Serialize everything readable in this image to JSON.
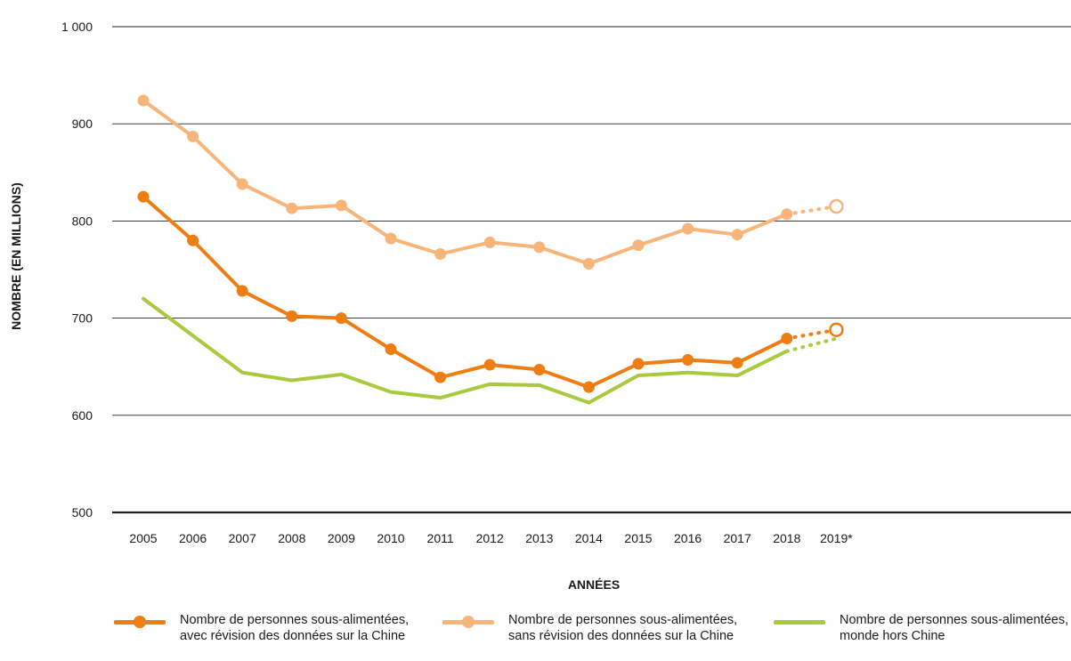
{
  "chart_data": {
    "type": "line",
    "title": "",
    "xlabel": "ANNÉES",
    "ylabel": "NOMBRE (EN MILLIONS)",
    "ylim": [
      500,
      1000
    ],
    "yticks": [
      500,
      600,
      700,
      800,
      900,
      1000
    ],
    "ytick_labels": [
      "500",
      "600",
      "700",
      "800",
      "900",
      "1 000"
    ],
    "categories": [
      "2005",
      "2006",
      "2007",
      "2008",
      "2009",
      "2010",
      "2011",
      "2012",
      "2013",
      "2014",
      "2015",
      "2016",
      "2017",
      "2018",
      "2019*"
    ],
    "grid": "horizontal",
    "legend_position": "bottom",
    "series": [
      {
        "name_lines": [
          "Nombre de personnes sous-alimentées,",
          "sans révision des données sur la Chine"
        ],
        "color": "#F7B57A",
        "markers": true,
        "values": [
          924,
          887,
          838,
          813,
          816,
          782,
          766,
          778,
          773,
          756,
          775,
          792,
          786,
          807,
          815
        ],
        "projection_from_index": 13
      },
      {
        "name_lines": [
          "Nombre de personnes sous-alimentées,",
          "avec révision des données sur la Chine"
        ],
        "color": "#EE7D12",
        "markers": true,
        "values": [
          825,
          780,
          728,
          702,
          700,
          668,
          639,
          652,
          647,
          629,
          653,
          657,
          654,
          679,
          688
        ],
        "projection_from_index": 13
      },
      {
        "name_lines": [
          "Nombre de personnes sous-alimentées,",
          "monde hors Chine"
        ],
        "color": "#A9C93E",
        "markers": false,
        "values": [
          720,
          682,
          644,
          636,
          642,
          624,
          618,
          632,
          631,
          613,
          641,
          644,
          641,
          666,
          679
        ],
        "projection_from_index": 13
      }
    ]
  },
  "legend": [
    {
      "lines": [
        "Nombre de personnes sous-alimentées,",
        "avec révision des données sur la Chine"
      ],
      "color": "#EE7D12",
      "marker": true
    },
    {
      "lines": [
        "Nombre de personnes sous-alimentées,",
        "sans révision des données sur la Chine"
      ],
      "color": "#F7B57A",
      "marker": true
    },
    {
      "lines": [
        "Nombre de personnes sous-alimentées,",
        "monde hors Chine"
      ],
      "color": "#A9C93E",
      "marker": false
    }
  ]
}
